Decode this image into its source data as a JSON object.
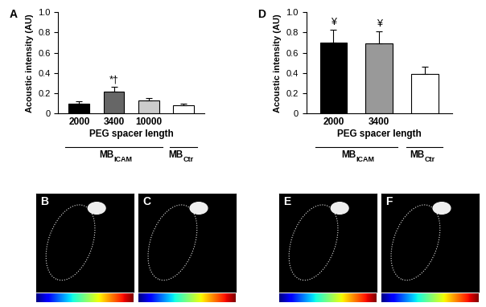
{
  "chart_data": [
    {
      "type": "bar",
      "panel_label": "A",
      "x_label": "PEG spacer length",
      "y_label": "Acoustic intensity (AU)",
      "categories": [
        "2000",
        "3400",
        "10000",
        null
      ],
      "values": [
        0.1,
        0.22,
        0.13,
        0.08
      ],
      "errors": [
        0.02,
        0.045,
        0.025,
        0.02
      ],
      "colors": [
        "#000000",
        "#666666",
        "#cccccc",
        "#ffffff"
      ],
      "ylim": [
        0,
        1.0
      ],
      "yticks": [
        0,
        0.2,
        0.4,
        0.6,
        0.8,
        {
          "value": 1.0,
          "label": "1.0"
        }
      ],
      "annotations": [
        {
          "category_index": 1,
          "text": "*†"
        }
      ],
      "groups": [
        {
          "label": "MB",
          "subscript": "ICAM",
          "start": 0,
          "end": 2
        },
        {
          "label": "MB",
          "subscript": "Ctr",
          "start": 3,
          "end": 3
        }
      ]
    },
    {
      "type": "bar",
      "panel_label": "D",
      "x_label": "PEG spacer length",
      "y_label": "Acoustic intensity (AU)",
      "categories": [
        "2000",
        "3400",
        null
      ],
      "values": [
        0.7,
        0.69,
        0.39
      ],
      "errors": [
        0.13,
        0.12,
        0.07
      ],
      "colors": [
        "#000000",
        "#999999",
        "#ffffff"
      ],
      "ylim": [
        0,
        1.0
      ],
      "yticks": [
        0,
        0.2,
        0.4,
        0.6,
        0.8,
        {
          "value": 1.0,
          "label": "1.0"
        }
      ],
      "annotations": [
        {
          "category_index": 0,
          "text": "¥"
        },
        {
          "category_index": 1,
          "text": "¥"
        }
      ],
      "groups": [
        {
          "label": "MB",
          "subscript": "ICAM",
          "start": 0,
          "end": 1
        },
        {
          "label": "MB",
          "subscript": "Ctr",
          "start": 2,
          "end": 2
        }
      ]
    }
  ],
  "image_panels": [
    {
      "label": "B"
    },
    {
      "label": "C"
    },
    {
      "label": "E"
    },
    {
      "label": "F"
    }
  ]
}
